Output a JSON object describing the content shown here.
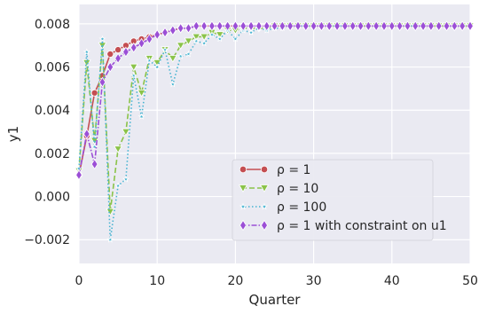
{
  "chart_data": {
    "type": "line",
    "title": "",
    "xlabel": "Quarter",
    "ylabel": "y1",
    "xlim": [
      0,
      50
    ],
    "ylim": [
      -0.0031,
      0.0089
    ],
    "xticks": [
      0,
      10,
      20,
      30,
      40,
      50
    ],
    "yticks": [
      -0.002,
      0.0,
      0.002,
      0.004,
      0.006,
      0.008
    ],
    "xtick_labels": [
      "0",
      "10",
      "20",
      "30",
      "40",
      "50"
    ],
    "ytick_labels": [
      "−0.002",
      "0.000",
      "0.002",
      "0.004",
      "0.006",
      "0.008"
    ],
    "grid": true,
    "legend_position": "lower-right",
    "background": "#eaeaf2",
    "series": [
      {
        "name": "ρ = 1",
        "color": "#c44e52",
        "marker": "circle",
        "linestyle": "solid",
        "x": [
          0,
          1,
          2,
          3,
          4,
          5,
          6,
          7,
          8,
          9,
          10,
          11,
          12,
          13,
          14,
          15,
          16,
          17,
          18,
          19,
          20,
          21,
          22,
          23,
          24,
          25,
          26,
          27,
          28,
          29,
          30,
          31,
          32,
          33,
          34,
          35,
          36,
          37,
          38,
          39,
          40,
          41,
          42,
          43,
          44,
          45,
          46,
          47,
          48,
          49,
          50
        ],
        "y": [
          0.001,
          0.0028,
          0.0048,
          0.0056,
          0.0066,
          0.0068,
          0.007,
          0.0072,
          0.0073,
          0.0074,
          0.0075,
          0.0076,
          0.0077,
          0.0078,
          0.0078,
          0.0079,
          0.0079,
          0.0079,
          0.0079,
          0.0079,
          0.0079,
          0.0079,
          0.0079,
          0.0079,
          0.0079,
          0.0079,
          0.0079,
          0.0079,
          0.0079,
          0.0079,
          0.0079,
          0.0079,
          0.0079,
          0.0079,
          0.0079,
          0.0079,
          0.0079,
          0.0079,
          0.0079,
          0.0079,
          0.0079,
          0.0079,
          0.0079,
          0.0079,
          0.0079,
          0.0079,
          0.0079,
          0.0079,
          0.0079,
          0.0079,
          0.0079
        ]
      },
      {
        "name": "ρ = 10",
        "color": "#8bc34a",
        "marker": "triangle-down",
        "linestyle": "dashed",
        "x": [
          0,
          1,
          2,
          3,
          4,
          5,
          6,
          7,
          8,
          9,
          10,
          11,
          12,
          13,
          14,
          15,
          16,
          17,
          18,
          19,
          20,
          21,
          22,
          23,
          24,
          25,
          26,
          27,
          28,
          29,
          30,
          31,
          32,
          33,
          34,
          35,
          36,
          37,
          38,
          39,
          40,
          41,
          42,
          43,
          44,
          45,
          46,
          47,
          48,
          49,
          50
        ],
        "y": [
          0.0012,
          0.0062,
          0.0026,
          0.007,
          -0.0007,
          0.0022,
          0.003,
          0.006,
          0.0048,
          0.0064,
          0.0062,
          0.0068,
          0.0064,
          0.007,
          0.0072,
          0.0074,
          0.0074,
          0.0076,
          0.0075,
          0.0077,
          0.0077,
          0.0078,
          0.0078,
          0.0078,
          0.0078,
          0.0079,
          0.0079,
          0.0079,
          0.0079,
          0.0079,
          0.0079,
          0.0079,
          0.0079,
          0.0079,
          0.0079,
          0.0079,
          0.0079,
          0.0079,
          0.0079,
          0.0079,
          0.0079,
          0.0079,
          0.0079,
          0.0079,
          0.0079,
          0.0079,
          0.0079,
          0.0079,
          0.0079,
          0.0079,
          0.0079
        ]
      },
      {
        "name": "ρ = 100",
        "color": "#46b3d1",
        "marker": "star",
        "linestyle": "dotted",
        "x": [
          0,
          1,
          2,
          3,
          4,
          5,
          6,
          7,
          8,
          9,
          10,
          11,
          12,
          13,
          14,
          15,
          16,
          17,
          18,
          19,
          20,
          21,
          22,
          23,
          24,
          25,
          26,
          27,
          28,
          29,
          30,
          31,
          32,
          33,
          34,
          35,
          36,
          37,
          38,
          39,
          40,
          41,
          42,
          43,
          44,
          45,
          46,
          47,
          48,
          49,
          50
        ],
        "y": [
          0.0013,
          0.0067,
          0.0023,
          0.0073,
          -0.002,
          0.0005,
          0.0008,
          0.0056,
          0.0037,
          0.0063,
          0.006,
          0.0068,
          0.0052,
          0.0065,
          0.0066,
          0.0072,
          0.0071,
          0.0075,
          0.0073,
          0.0077,
          0.0073,
          0.0077,
          0.0076,
          0.0078,
          0.0077,
          0.0078,
          0.0078,
          0.0079,
          0.0079,
          0.0079,
          0.0079,
          0.0079,
          0.0079,
          0.0079,
          0.0079,
          0.0079,
          0.0079,
          0.0079,
          0.0079,
          0.0079,
          0.0079,
          0.0079,
          0.0079,
          0.0079,
          0.0079,
          0.0079,
          0.0079,
          0.0079,
          0.0079,
          0.0079,
          0.0079
        ]
      },
      {
        "name": "ρ = 1 with constraint on u1",
        "color": "#9b4fd6",
        "marker": "diamond",
        "linestyle": "dashdot",
        "x": [
          0,
          1,
          2,
          3,
          4,
          5,
          6,
          7,
          8,
          9,
          10,
          11,
          12,
          13,
          14,
          15,
          16,
          17,
          18,
          19,
          20,
          21,
          22,
          23,
          24,
          25,
          26,
          27,
          28,
          29,
          30,
          31,
          32,
          33,
          34,
          35,
          36,
          37,
          38,
          39,
          40,
          41,
          42,
          43,
          44,
          45,
          46,
          47,
          48,
          49,
          50
        ],
        "y": [
          0.001,
          0.0029,
          0.0015,
          0.0053,
          0.006,
          0.0064,
          0.0067,
          0.0069,
          0.0071,
          0.0073,
          0.0075,
          0.0076,
          0.0077,
          0.0078,
          0.0078,
          0.0079,
          0.0079,
          0.0079,
          0.0079,
          0.0079,
          0.0079,
          0.0079,
          0.0079,
          0.0079,
          0.0079,
          0.0079,
          0.0079,
          0.0079,
          0.0079,
          0.0079,
          0.0079,
          0.0079,
          0.0079,
          0.0079,
          0.0079,
          0.0079,
          0.0079,
          0.0079,
          0.0079,
          0.0079,
          0.0079,
          0.0079,
          0.0079,
          0.0079,
          0.0079,
          0.0079,
          0.0079,
          0.0079,
          0.0079,
          0.0079,
          0.0079
        ]
      }
    ]
  }
}
